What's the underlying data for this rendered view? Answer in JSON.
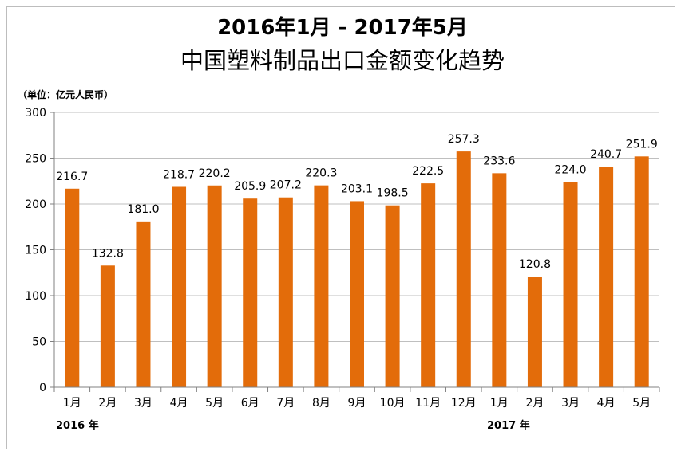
{
  "chart_data": {
    "type": "bar",
    "title": "2016年1月 - 2017年5月",
    "subtitle": "中国塑料制品出口金额变化趋势",
    "unit_label": "（单位：亿元人民币）",
    "categories": [
      "1月",
      "2月",
      "3月",
      "4月",
      "5月",
      "6月",
      "7月",
      "8月",
      "9月",
      "10月",
      "11月",
      "12月",
      "1月",
      "2月",
      "3月",
      "4月",
      "5月"
    ],
    "year_labels": [
      "2016 年",
      "2017 年"
    ],
    "values": [
      216.7,
      132.8,
      181.0,
      218.7,
      220.2,
      205.9,
      207.2,
      220.3,
      203.1,
      198.5,
      222.5,
      257.3,
      233.6,
      120.8,
      224.0,
      240.7,
      251.9
    ],
    "value_labels": [
      "216.7",
      "132.8",
      "181.0",
      "218.7",
      "220.2",
      "205.9",
      "207.2",
      "220.3",
      "203.1",
      "198.5",
      "222.5",
      "257.3",
      "233.6",
      "120.8",
      "224.0",
      "240.7",
      "251.9"
    ],
    "y_ticks": [
      0,
      50,
      100,
      150,
      200,
      250,
      300
    ],
    "ylim": [
      0,
      300
    ],
    "grid": true,
    "colors": {
      "bar": "#E36C0A",
      "grid": "#bfbfbf",
      "axis": "#808080"
    }
  }
}
